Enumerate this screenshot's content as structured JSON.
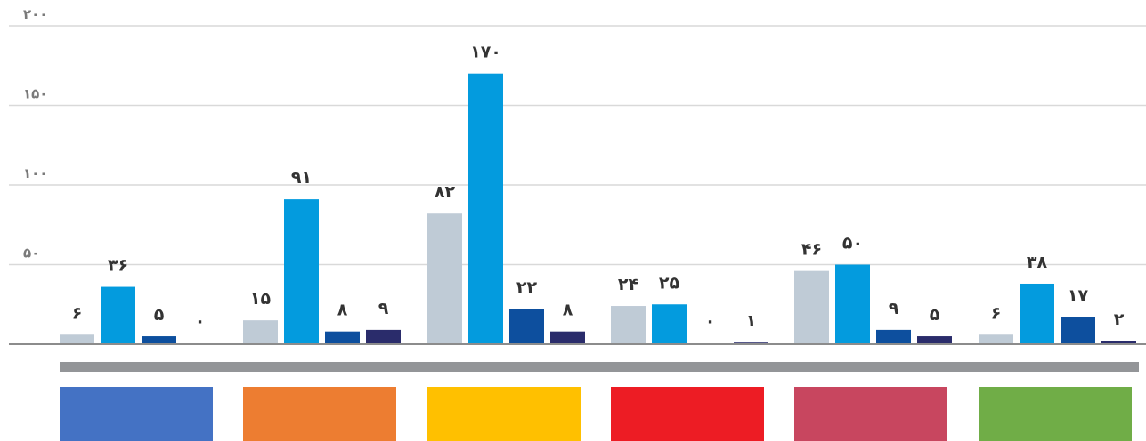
{
  "chart_data": {
    "type": "bar",
    "title": "",
    "xlabel": "",
    "ylabel": "",
    "ylim": [
      0,
      200
    ],
    "yticks": [
      0,
      50,
      100,
      150,
      200
    ],
    "ytick_labels": [
      "",
      "۵۰",
      "۱۰۰",
      "۱۵۰",
      "۲۰۰"
    ],
    "grid": true,
    "categories": [
      "",
      "",
      "",
      "",
      "",
      ""
    ],
    "category_colors": [
      "#4472C4",
      "#ED7D31",
      "#FFC000",
      "#ED1C24",
      "#C8465F",
      "#70AD47"
    ],
    "series": [
      {
        "color": "#BFCBD6",
        "values": [
          6,
          15,
          82,
          24,
          46,
          6
        ],
        "labels": [
          "۶",
          "۱۵",
          "۸۲",
          "۲۴",
          "۴۶",
          "۶"
        ]
      },
      {
        "color": "#039BDE",
        "values": [
          36,
          91,
          170,
          25,
          50,
          38
        ],
        "labels": [
          "۳۶",
          "۹۱",
          "۱۷۰",
          "۲۵",
          "۵۰",
          "۳۸"
        ]
      },
      {
        "color": "#0D4F9E",
        "values": [
          5,
          8,
          22,
          0,
          9,
          17
        ],
        "labels": [
          "۵",
          "۸",
          "۲۲",
          "۰",
          "۹",
          "۱۷"
        ]
      },
      {
        "color": "#2A2C6B",
        "values": [
          0,
          9,
          8,
          1,
          5,
          2
        ],
        "labels": [
          "۰",
          "۹",
          "۸",
          "۱",
          "۵",
          "۲"
        ]
      }
    ]
  }
}
